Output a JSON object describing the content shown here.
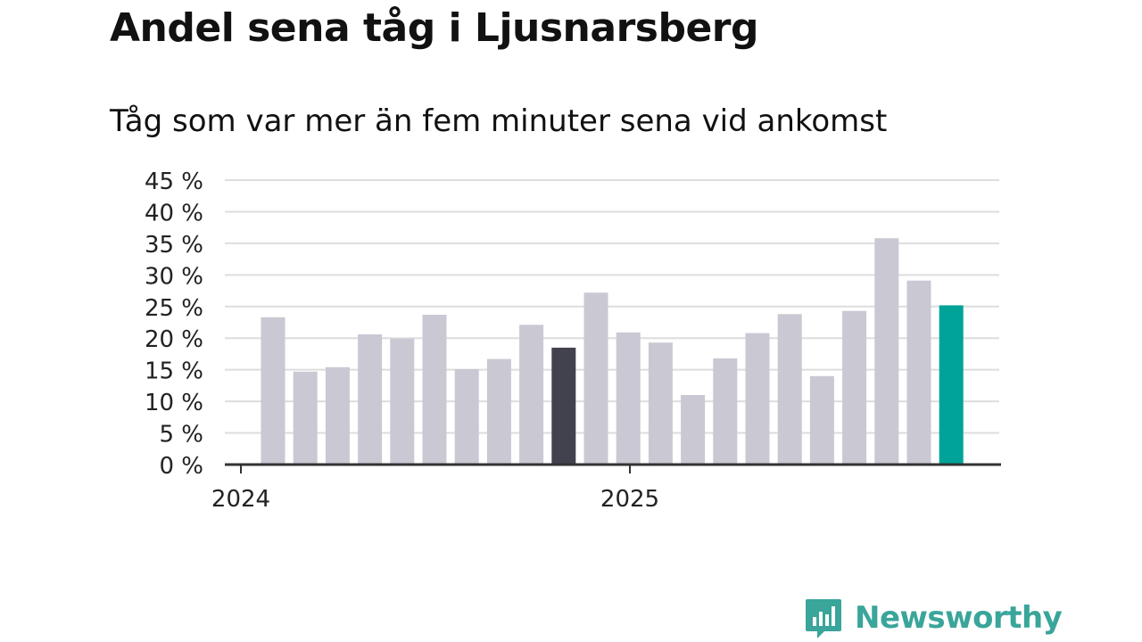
{
  "chart_data": {
    "type": "bar",
    "title": "Andel sena tåg i Ljusnarsberg",
    "subtitle": "Tåg som var mer än fem minuter sena vid ankomst",
    "y_ticks": [
      "0 %",
      "5 %",
      "10 %",
      "15 %",
      "20 %",
      "25 %",
      "30 %",
      "35 %",
      "40 %",
      "45 %"
    ],
    "ylim": [
      0,
      45
    ],
    "x_tick_labels": [
      "2024",
      "2025"
    ],
    "values": [
      23.3,
      14.7,
      15.4,
      20.6,
      19.9,
      23.7,
      15.1,
      16.7,
      22.1,
      18.5,
      27.2,
      20.9,
      19.3,
      11.0,
      16.8,
      20.8,
      23.8,
      14.0,
      24.3,
      35.8,
      29.1,
      25.2
    ],
    "highlight_colors": {
      "default": "#c9c8d3",
      "highlight": "#42414e",
      "latest": "#00a398"
    },
    "highlight_index": 9,
    "latest_index": 21,
    "grid": true
  },
  "logo": {
    "text": "Newsworthy",
    "icon": "newsworthy-chat-bars-icon"
  }
}
